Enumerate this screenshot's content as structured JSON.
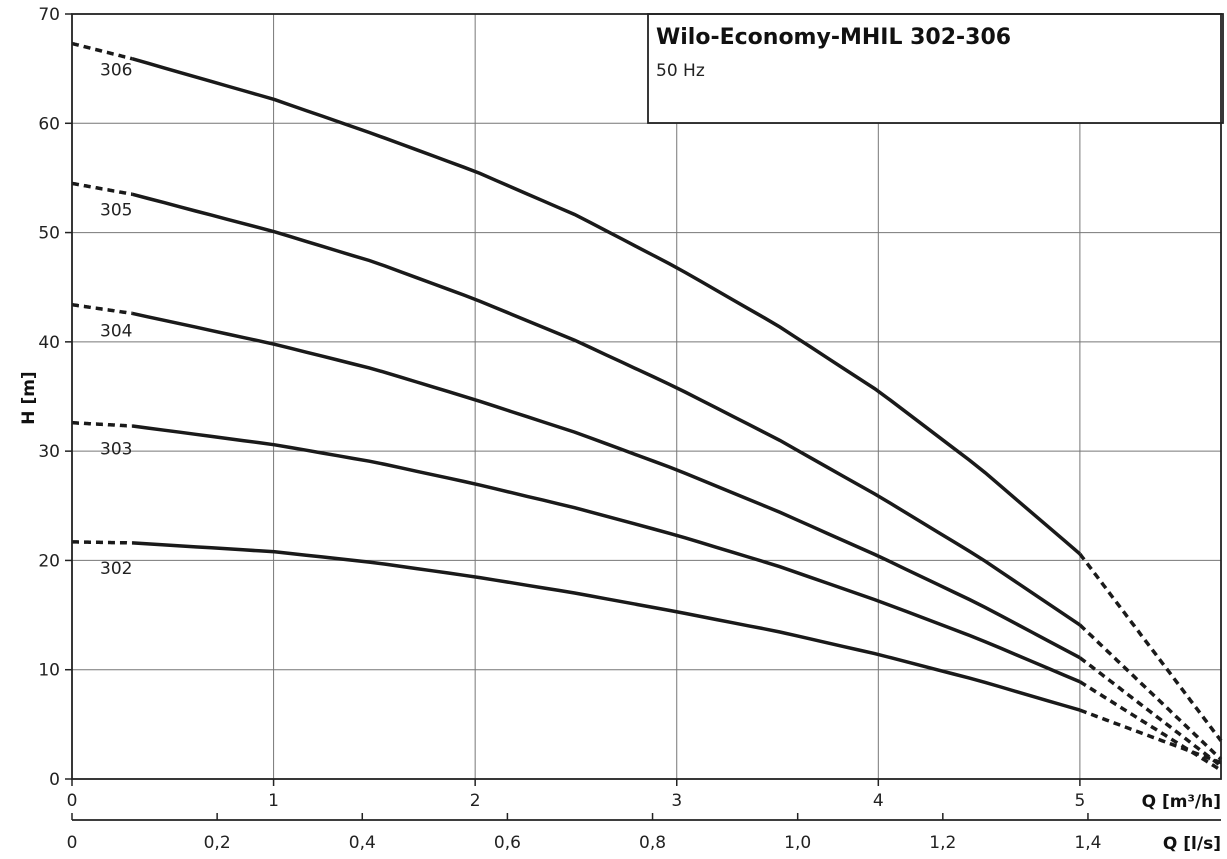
{
  "chart_data": {
    "type": "line",
    "title": "Wilo-Economy-MHIL 302-306",
    "subtitle": "50 Hz",
    "ylabel": "H [m]",
    "xlabel": "Q [m³/h]",
    "x2label": "Q [l/s]",
    "xlim": [
      0,
      5.7
    ],
    "ylim": [
      0,
      70
    ],
    "x_ticks": [
      0,
      1,
      2,
      3,
      4,
      5
    ],
    "x_tick_labels": [
      "0",
      "1",
      "2",
      "3",
      "4",
      "5"
    ],
    "x2_ticks": [
      0,
      0.2,
      0.4,
      0.6,
      0.8,
      1.0,
      1.2,
      1.4
    ],
    "x2_tick_labels": [
      "0",
      "0,2",
      "0,4",
      "0,6",
      "0,8",
      "1,0",
      "1,2",
      "1,4"
    ],
    "y_ticks": [
      0,
      10,
      20,
      30,
      40,
      50,
      60,
      70
    ],
    "y_tick_labels": [
      "0",
      "10",
      "20",
      "30",
      "40",
      "50",
      "60",
      "70"
    ],
    "grid": true,
    "solid_range": [
      0.3,
      5.0
    ],
    "series": [
      {
        "name": "302",
        "x": [
          0,
          0.3,
          1,
          1.5,
          2,
          2.5,
          3,
          3.5,
          4,
          4.5,
          5,
          5.7
        ],
        "y": [
          21.7,
          21.6,
          20.8,
          19.8,
          18.5,
          17.0,
          15.3,
          13.5,
          11.4,
          9.0,
          6.3,
          1.5
        ]
      },
      {
        "name": "303",
        "x": [
          0,
          0.3,
          1,
          1.5,
          2,
          2.5,
          3,
          3.5,
          4,
          4.5,
          5,
          5.7
        ],
        "y": [
          32.6,
          32.3,
          30.6,
          29.0,
          27.0,
          24.8,
          22.3,
          19.5,
          16.3,
          12.8,
          8.9,
          0.8
        ]
      },
      {
        "name": "304",
        "x": [
          0,
          0.3,
          1,
          1.5,
          2,
          2.5,
          3,
          3.5,
          4,
          4.5,
          5,
          5.7
        ],
        "y": [
          43.4,
          42.6,
          39.8,
          37.5,
          34.7,
          31.7,
          28.3,
          24.5,
          20.4,
          16.0,
          11.1,
          1.2
        ]
      },
      {
        "name": "305",
        "x": [
          0,
          0.3,
          1,
          1.5,
          2,
          2.5,
          3,
          3.5,
          4,
          4.5,
          5,
          5.7
        ],
        "y": [
          54.5,
          53.5,
          50.1,
          47.3,
          43.9,
          40.1,
          35.8,
          31.1,
          25.9,
          20.3,
          14.1,
          1.8
        ]
      },
      {
        "name": "306",
        "x": [
          0,
          0.3,
          1,
          1.5,
          2,
          2.5,
          3,
          3.5,
          4,
          4.5,
          5,
          5.7
        ],
        "y": [
          67.3,
          65.9,
          62.2,
          59.0,
          55.6,
          51.6,
          46.8,
          41.5,
          35.5,
          28.5,
          20.6,
          3.5
        ]
      }
    ]
  }
}
